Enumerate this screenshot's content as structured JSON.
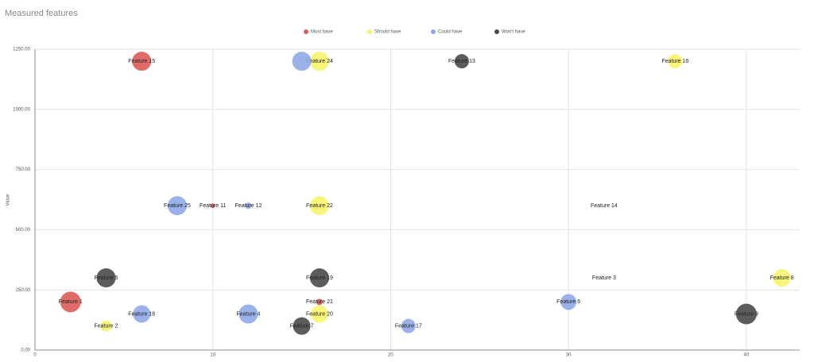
{
  "chart_data": {
    "type": "bubble",
    "title": "Measured features",
    "y_label": "Value",
    "xlim": [
      0,
      43
    ],
    "xticks": [
      0,
      10,
      20,
      30,
      40
    ],
    "ylim": [
      0,
      1250
    ],
    "yticks": [
      {
        "value": 0,
        "label": "0.00"
      },
      {
        "value": 250,
        "label": "250.00"
      },
      {
        "value": 500,
        "label": "500.00"
      },
      {
        "value": 750,
        "label": "750.00"
      },
      {
        "value": 1000,
        "label": "1000.00"
      },
      {
        "value": 1250,
        "label": "1250.00"
      }
    ],
    "grid": true,
    "legend": "top",
    "series": [
      {
        "name": "Must have",
        "color": "#dc5b57",
        "x": [
          6,
          10,
          2,
          16
        ],
        "values": [
          1200,
          600,
          200,
          200
        ],
        "sizes": [
          12,
          3,
          13,
          4
        ],
        "labels": [
          "Feature 15",
          "Feature 11",
          "Feature 1",
          "Feature 21"
        ]
      },
      {
        "name": "Should have",
        "color": "#f7f56b",
        "x": [
          16,
          36,
          16,
          32,
          32,
          42,
          16,
          4
        ],
        "values": [
          1200,
          1200,
          600,
          600,
          300,
          300,
          150,
          100
        ],
        "sizes": [
          12,
          9,
          12,
          0,
          0,
          11,
          11,
          7
        ],
        "labels": [
          "Feature 24",
          "Feature 16",
          "Feature 22",
          "Feature 14",
          "Feature 3",
          "Feature 8",
          "Feature 20",
          "Feature 2"
        ]
      },
      {
        "name": "Could have",
        "color": "#8fa8e8",
        "x": [
          15,
          8,
          12,
          30,
          6,
          12,
          21
        ],
        "values": [
          1200,
          600,
          600,
          200,
          150,
          150,
          100
        ],
        "sizes": [
          12,
          12,
          4,
          10,
          11,
          12,
          9
        ],
        "labels": [
          null,
          "Feature 25",
          "Feature 12",
          "Feature 6",
          "Feature 18",
          "Feature 4",
          "Feature 17"
        ]
      },
      {
        "name": "Won't have",
        "color": "#4a4a4a",
        "x": [
          24,
          4,
          16,
          40,
          15
        ],
        "values": [
          1200,
          300,
          300,
          150,
          100
        ],
        "sizes": [
          9,
          12,
          12,
          13,
          11
        ],
        "labels": [
          "Feature 13",
          "Feature 5",
          "Feature 19",
          "Feature 9",
          "Feature 7"
        ]
      }
    ]
  }
}
